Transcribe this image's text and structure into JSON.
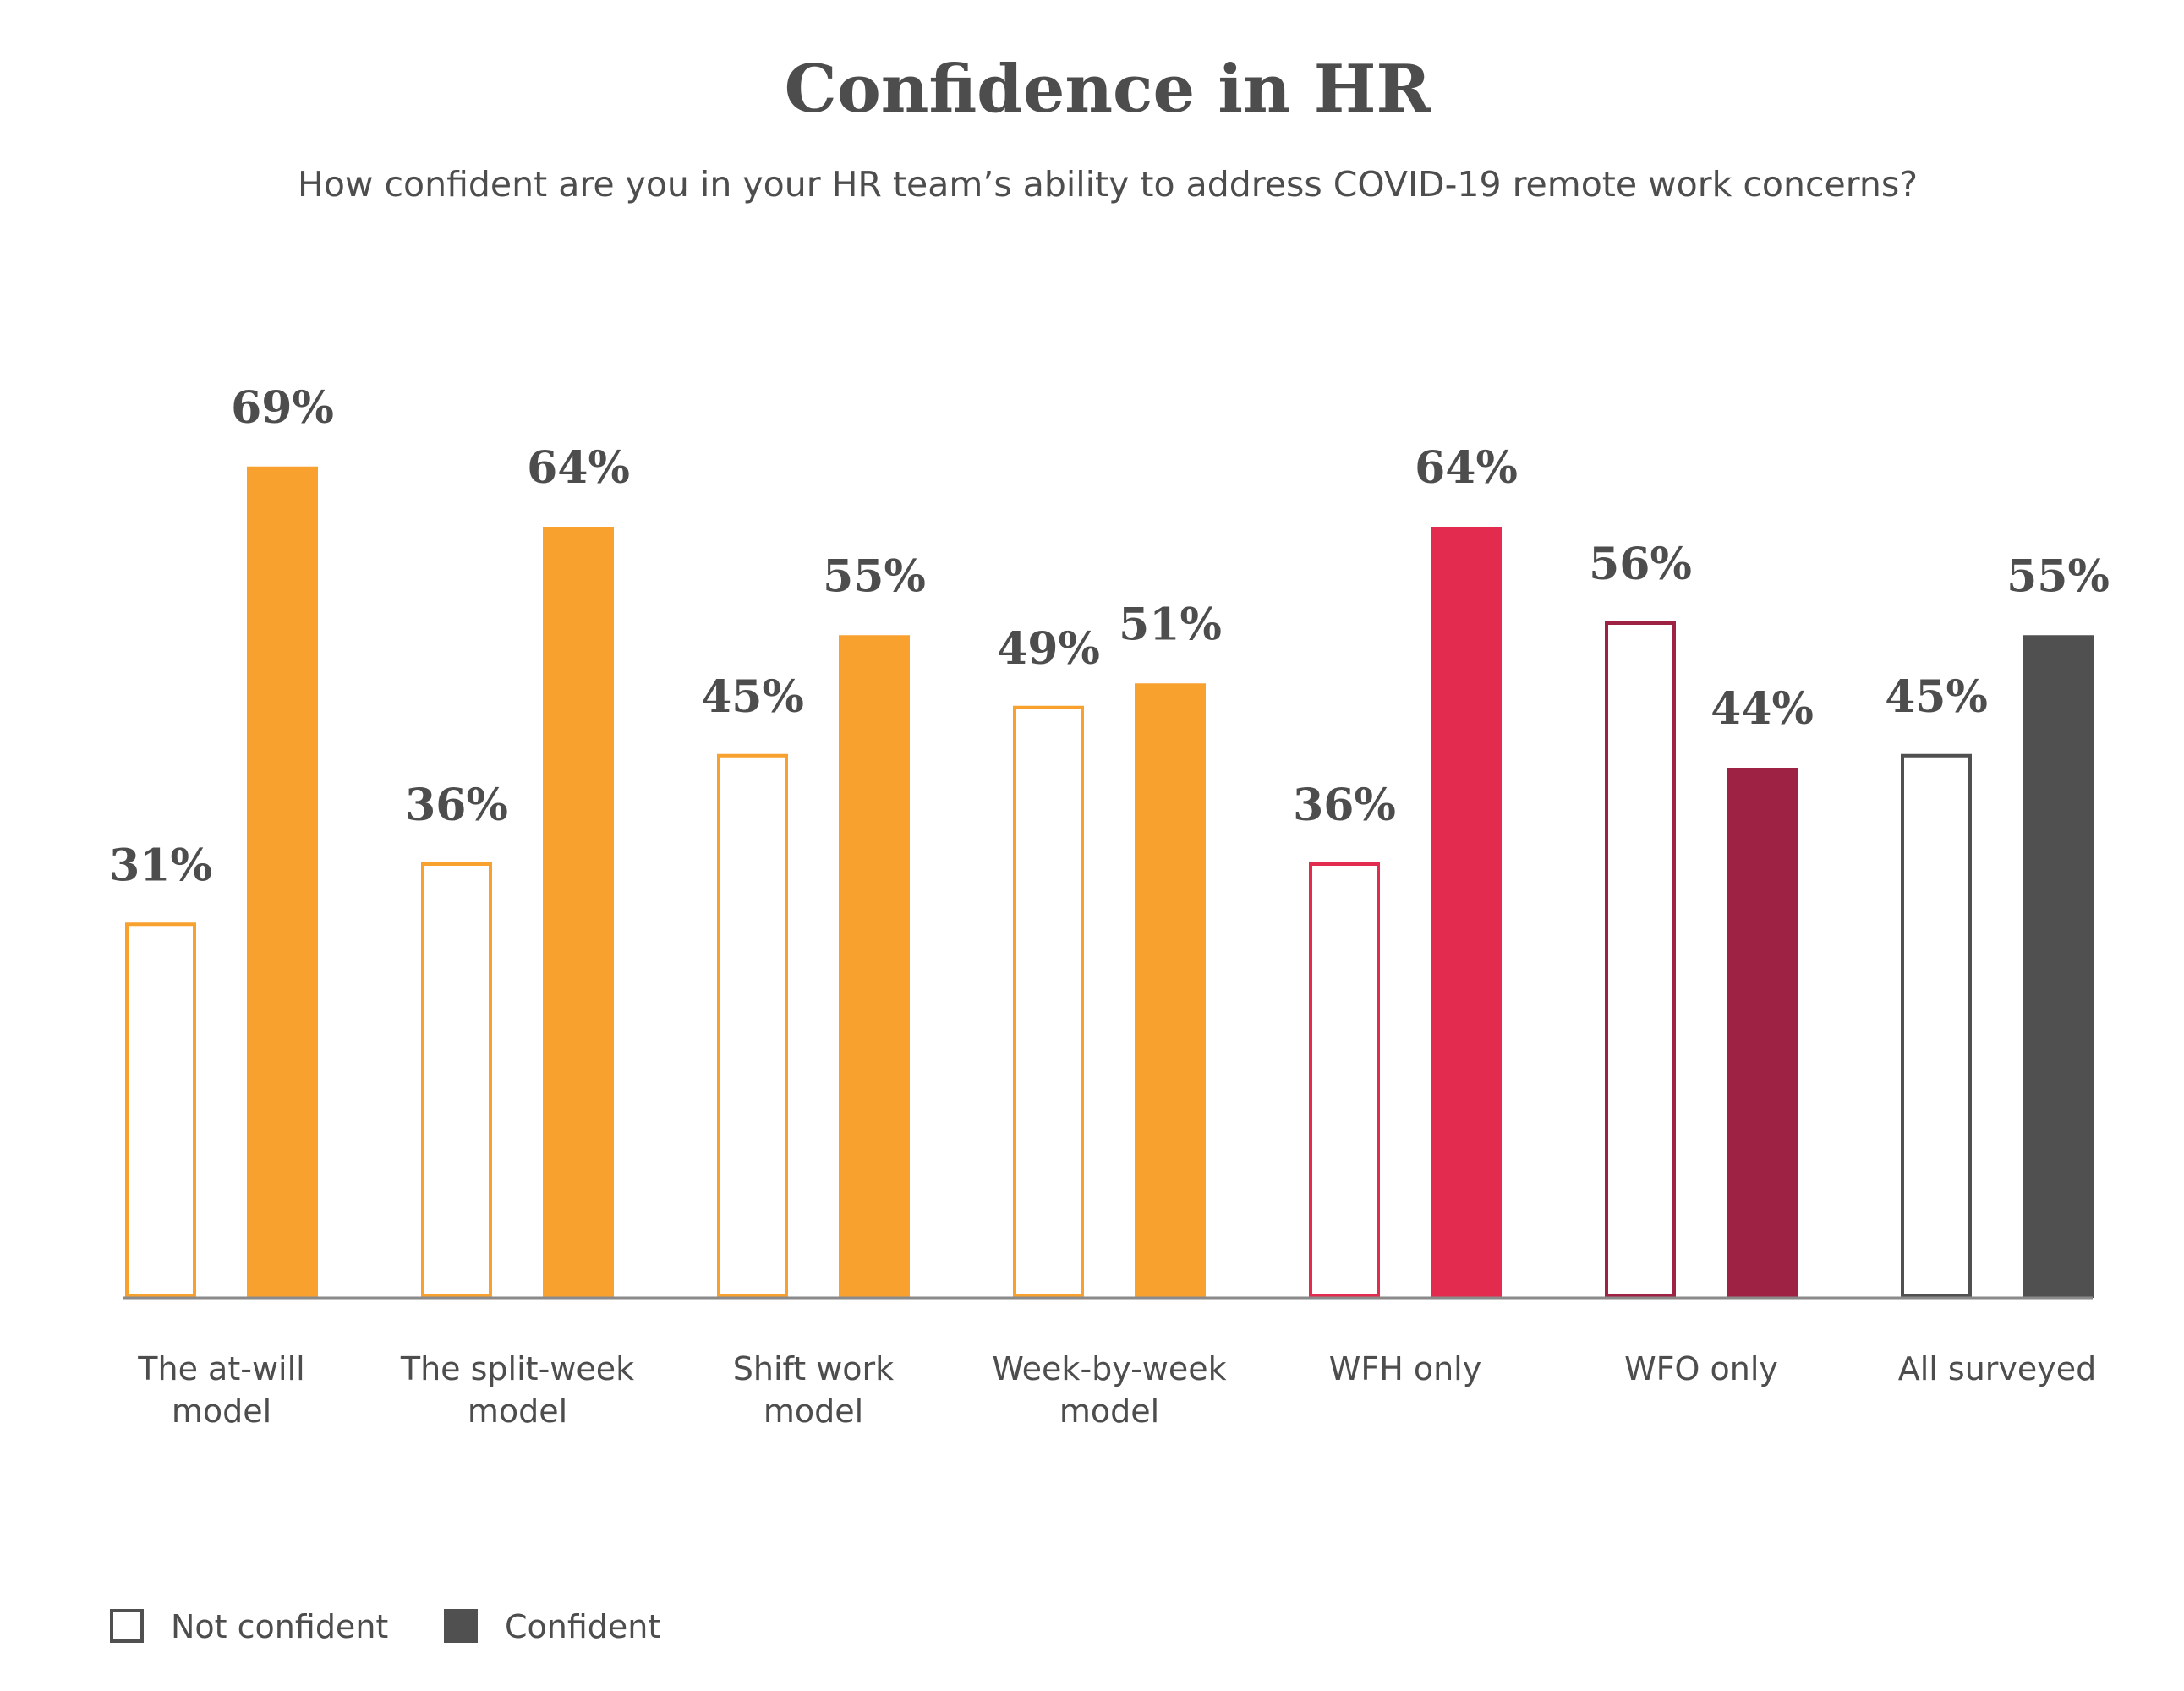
{
  "chart_data": {
    "type": "bar",
    "title": "Confidence in HR",
    "subtitle": "How confident are you in your HR team’s ability to address COVID-19 remote work concerns?",
    "categories": [
      [
        "The at-will",
        "model"
      ],
      [
        "The split-week",
        "model"
      ],
      [
        "Shift work",
        "model"
      ],
      [
        "Week-by-week",
        "model"
      ],
      [
        "WFH only"
      ],
      [
        "WFO only"
      ],
      [
        "All surveyed"
      ]
    ],
    "series": [
      {
        "name": "Not confident",
        "values": [
          31,
          36,
          45,
          49,
          36,
          56,
          45
        ]
      },
      {
        "name": "Confident",
        "values": [
          69,
          64,
          55,
          51,
          64,
          44,
          55
        ]
      }
    ],
    "value_labels": {
      "not_confident": [
        "31%",
        "36%",
        "45%",
        "49%",
        "36%",
        "56%",
        "45%"
      ],
      "confident": [
        "69%",
        "64%",
        "55%",
        "51%",
        "64%",
        "44%",
        "55%"
      ]
    },
    "category_colors": [
      "#f9a12e",
      "#f9a12e",
      "#f9a12e",
      "#f9a12e",
      "#e32b4f",
      "#9e2244",
      "#505050"
    ],
    "ylim": [
      0,
      100
    ],
    "grid": false,
    "legend": "bottom-left",
    "legend_items": [
      {
        "label": "Not confident",
        "style": "outline"
      },
      {
        "label": "Confident",
        "style": "filled"
      }
    ],
    "legend_color": "#505050"
  }
}
